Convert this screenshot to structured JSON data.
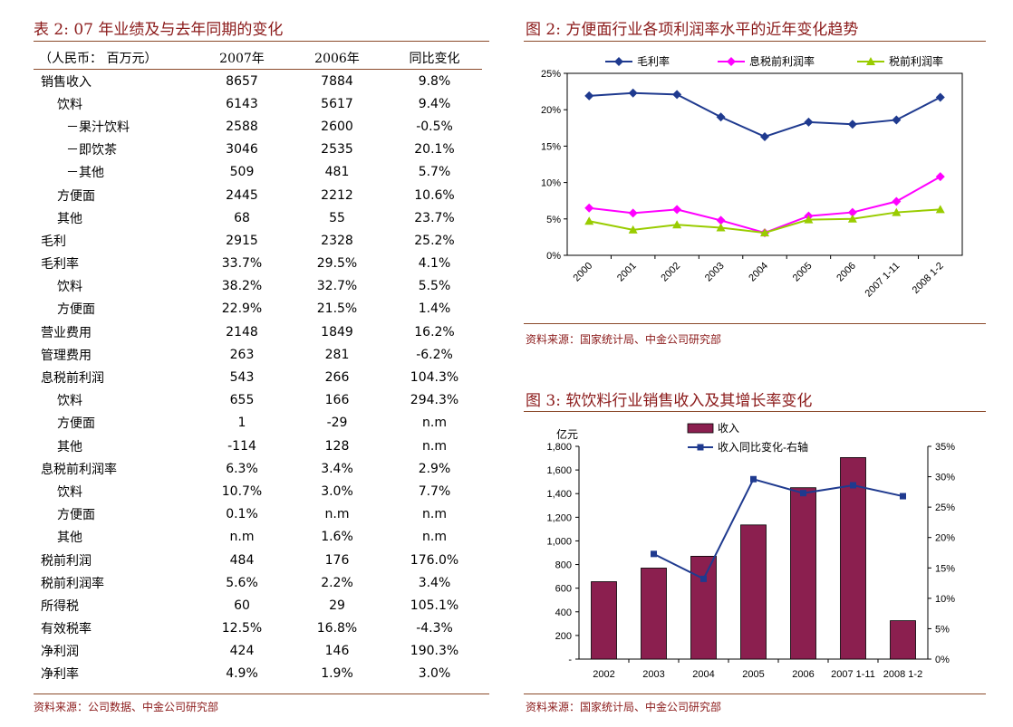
{
  "table2": {
    "title": "表 2:  07 年业绩及与去年同期的变化",
    "headers": [
      "（人民币：  百万元）",
      "2007年",
      "2006年",
      "同比变化"
    ],
    "rows": [
      {
        "label": "销售收入",
        "level": 0,
        "v2007": "8657",
        "v2006": "7884",
        "yoy": "9.8%"
      },
      {
        "label": "饮料",
        "level": 1,
        "v2007": "6143",
        "v2006": "5617",
        "yoy": "9.4%"
      },
      {
        "label": "－果汁饮料",
        "level": 2,
        "v2007": "2588",
        "v2006": "2600",
        "yoy": "-0.5%"
      },
      {
        "label": "－即饮茶",
        "level": 2,
        "v2007": "3046",
        "v2006": "2535",
        "yoy": "20.1%"
      },
      {
        "label": "－其他",
        "level": 2,
        "v2007": "509",
        "v2006": "481",
        "yoy": "5.7%"
      },
      {
        "label": "方便面",
        "level": 1,
        "v2007": "2445",
        "v2006": "2212",
        "yoy": "10.6%"
      },
      {
        "label": "其他",
        "level": 1,
        "v2007": "68",
        "v2006": "55",
        "yoy": "23.7%"
      },
      {
        "label": "毛利",
        "level": 0,
        "v2007": "2915",
        "v2006": "2328",
        "yoy": "25.2%"
      },
      {
        "label": "毛利率",
        "level": 0,
        "v2007": "33.7%",
        "v2006": "29.5%",
        "yoy": "4.1%"
      },
      {
        "label": "饮料",
        "level": 1,
        "v2007": "38.2%",
        "v2006": "32.7%",
        "yoy": "5.5%"
      },
      {
        "label": "方便面",
        "level": 1,
        "v2007": "22.9%",
        "v2006": "21.5%",
        "yoy": "1.4%"
      },
      {
        "label": "营业费用",
        "level": 0,
        "v2007": "2148",
        "v2006": "1849",
        "yoy": "16.2%"
      },
      {
        "label": "管理费用",
        "level": 0,
        "v2007": "263",
        "v2006": "281",
        "yoy": "-6.2%"
      },
      {
        "label": "息税前利润",
        "level": 0,
        "v2007": "543",
        "v2006": "266",
        "yoy": "104.3%"
      },
      {
        "label": "饮料",
        "level": 1,
        "v2007": "655",
        "v2006": "166",
        "yoy": "294.3%"
      },
      {
        "label": "方便面",
        "level": 1,
        "v2007": "1",
        "v2006": "-29",
        "yoy": "n.m"
      },
      {
        "label": "其他",
        "level": 1,
        "v2007": "-114",
        "v2006": "128",
        "yoy": "n.m"
      },
      {
        "label": "息税前利润率",
        "level": 0,
        "v2007": "6.3%",
        "v2006": "3.4%",
        "yoy": "2.9%"
      },
      {
        "label": "饮料",
        "level": 1,
        "v2007": "10.7%",
        "v2006": "3.0%",
        "yoy": "7.7%"
      },
      {
        "label": "方便面",
        "level": 1,
        "v2007": "0.1%",
        "v2006": "n.m",
        "yoy": "n.m"
      },
      {
        "label": "其他",
        "level": 1,
        "v2007": "n.m",
        "v2006": "1.6%",
        "yoy": "n.m"
      },
      {
        "label": "税前利润",
        "level": 0,
        "v2007": "484",
        "v2006": "176",
        "yoy": "176.0%"
      },
      {
        "label": "税前利润率",
        "level": 0,
        "v2007": "5.6%",
        "v2006": "2.2%",
        "yoy": "3.4%"
      },
      {
        "label": "所得税",
        "level": 0,
        "v2007": "60",
        "v2006": "29",
        "yoy": "105.1%"
      },
      {
        "label": "有效税率",
        "level": 0,
        "v2007": "12.5%",
        "v2006": "16.8%",
        "yoy": "-4.3%"
      },
      {
        "label": "净利润",
        "level": 0,
        "v2007": "424",
        "v2006": "146",
        "yoy": "190.3%"
      },
      {
        "label": "净利率",
        "level": 0,
        "v2007": "4.9%",
        "v2006": "1.9%",
        "yoy": "3.0%"
      }
    ],
    "source": "资料来源：公司数据、中金公司研究部"
  },
  "fig2": {
    "title": "图 2:  方便面行业各项利润率水平的近年变化趋势",
    "source": "资料来源：国家统计局、中金公司研究部"
  },
  "fig3": {
    "title": "图 3:  软饮料行业销售收入及其增长率变化",
    "source": "资料来源：国家统计局、中金公司研究部"
  },
  "colors": {
    "title": "#8B1A1A",
    "navy": "#1F3A8F",
    "magenta": "#FF00FF",
    "green": "#99CC00",
    "bar": "#8B1F4F"
  },
  "chart_data": [
    {
      "type": "line",
      "x": [
        "2000",
        "2001",
        "2002",
        "2003",
        "2004",
        "2005",
        "2006",
        "2007 1-11",
        "2008 1-2"
      ],
      "series": [
        {
          "name": "毛利率",
          "values": [
            21.9,
            22.3,
            22.1,
            19.0,
            16.3,
            18.3,
            18.0,
            18.6,
            21.7
          ]
        },
        {
          "name": "息税前利润率",
          "values": [
            6.5,
            5.8,
            6.3,
            4.8,
            3.1,
            5.4,
            5.9,
            7.4,
            10.8
          ]
        },
        {
          "name": "税前利润率",
          "values": [
            4.7,
            3.5,
            4.2,
            3.8,
            3.1,
            4.9,
            5.0,
            5.9,
            6.3
          ]
        }
      ],
      "yticks": [
        "0%",
        "5%",
        "10%",
        "15%",
        "20%",
        "25%"
      ],
      "ylim": [
        0,
        25
      ],
      "legend": "top"
    },
    {
      "type": "bar",
      "categories": [
        "2002",
        "2003",
        "2004",
        "2005",
        "2006",
        "2007 1-11",
        "2008 1-2"
      ],
      "series": [
        {
          "name": "收入",
          "values": [
            655,
            770,
            870,
            1135,
            1450,
            1705,
            325
          ],
          "axis": "left"
        },
        {
          "name": "收入同比变化-右轴",
          "values": [
            null,
            17.3,
            13.2,
            29.6,
            27.3,
            28.6,
            26.8
          ],
          "axis": "right",
          "type": "line"
        }
      ],
      "ylabel": "亿元",
      "yticks_left": [
        "-",
        "200",
        "400",
        "600",
        "800",
        "1,000",
        "1,200",
        "1,400",
        "1,600",
        "1,800"
      ],
      "ylim_left": [
        0,
        1800
      ],
      "yticks_right": [
        "0%",
        "5%",
        "10%",
        "15%",
        "20%",
        "25%",
        "30%",
        "35%"
      ],
      "ylim_right": [
        0,
        35
      ],
      "legend": "top"
    }
  ]
}
